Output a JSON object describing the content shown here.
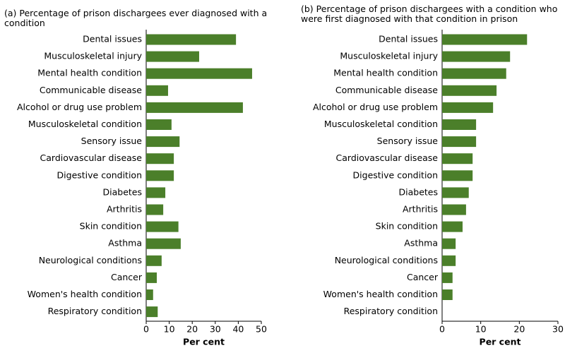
{
  "chart_data": [
    {
      "type": "bar",
      "orientation": "horizontal",
      "title": "(a) Percentage of prison dischargees ever diagnosed with a condition",
      "xlabel": "Per cent",
      "color": "#4b7f2a",
      "categories": [
        "Dental issues",
        "Musculoskeletal injury",
        "Mental health condition",
        "Communicable disease",
        "Alcohol or drug use problem",
        "Musculoskeletal condition",
        "Sensory issue",
        "Cardiovascular disease",
        "Digestive condition",
        "Diabetes",
        "Arthritis",
        "Skin condition",
        "Asthma",
        "Neurological conditions",
        "Cancer",
        "Women's health condition",
        "Respiratory condition"
      ],
      "values": [
        39,
        23,
        46,
        9.5,
        42,
        11,
        14.5,
        12,
        12,
        8.3,
        7.4,
        14,
        15,
        6.7,
        4.6,
        3,
        5
      ],
      "xlim": [
        0,
        50
      ],
      "xticks": [
        0,
        10,
        20,
        30,
        40,
        50
      ]
    },
    {
      "type": "bar",
      "orientation": "horizontal",
      "title": "(b) Percentage of prison dischargees with a condition who were first diagnosed with that condition in prison",
      "xlabel": "Per cent",
      "color": "#4b7f2a",
      "categories": [
        "Dental issues",
        "Musculoskeletal injury",
        "Mental health condition",
        "Communicable disease",
        "Alcohol or drug use problem",
        "Musculoskeletal condition",
        "Sensory issue",
        "Cardiovascular disease",
        "Digestive condition",
        "Diabetes",
        "Arthritis",
        "Skin condition",
        "Asthma",
        "Neurological conditions",
        "Cancer",
        "Women's health condition",
        "Respiratory condition"
      ],
      "values": [
        22,
        17.6,
        16.6,
        14.1,
        13.2,
        8.8,
        8.8,
        7.9,
        7.9,
        6.9,
        6.2,
        5.3,
        3.5,
        3.5,
        2.7,
        2.7,
        0
      ],
      "xlim": [
        0,
        30
      ],
      "xticks": [
        0,
        10,
        20,
        30
      ]
    }
  ]
}
